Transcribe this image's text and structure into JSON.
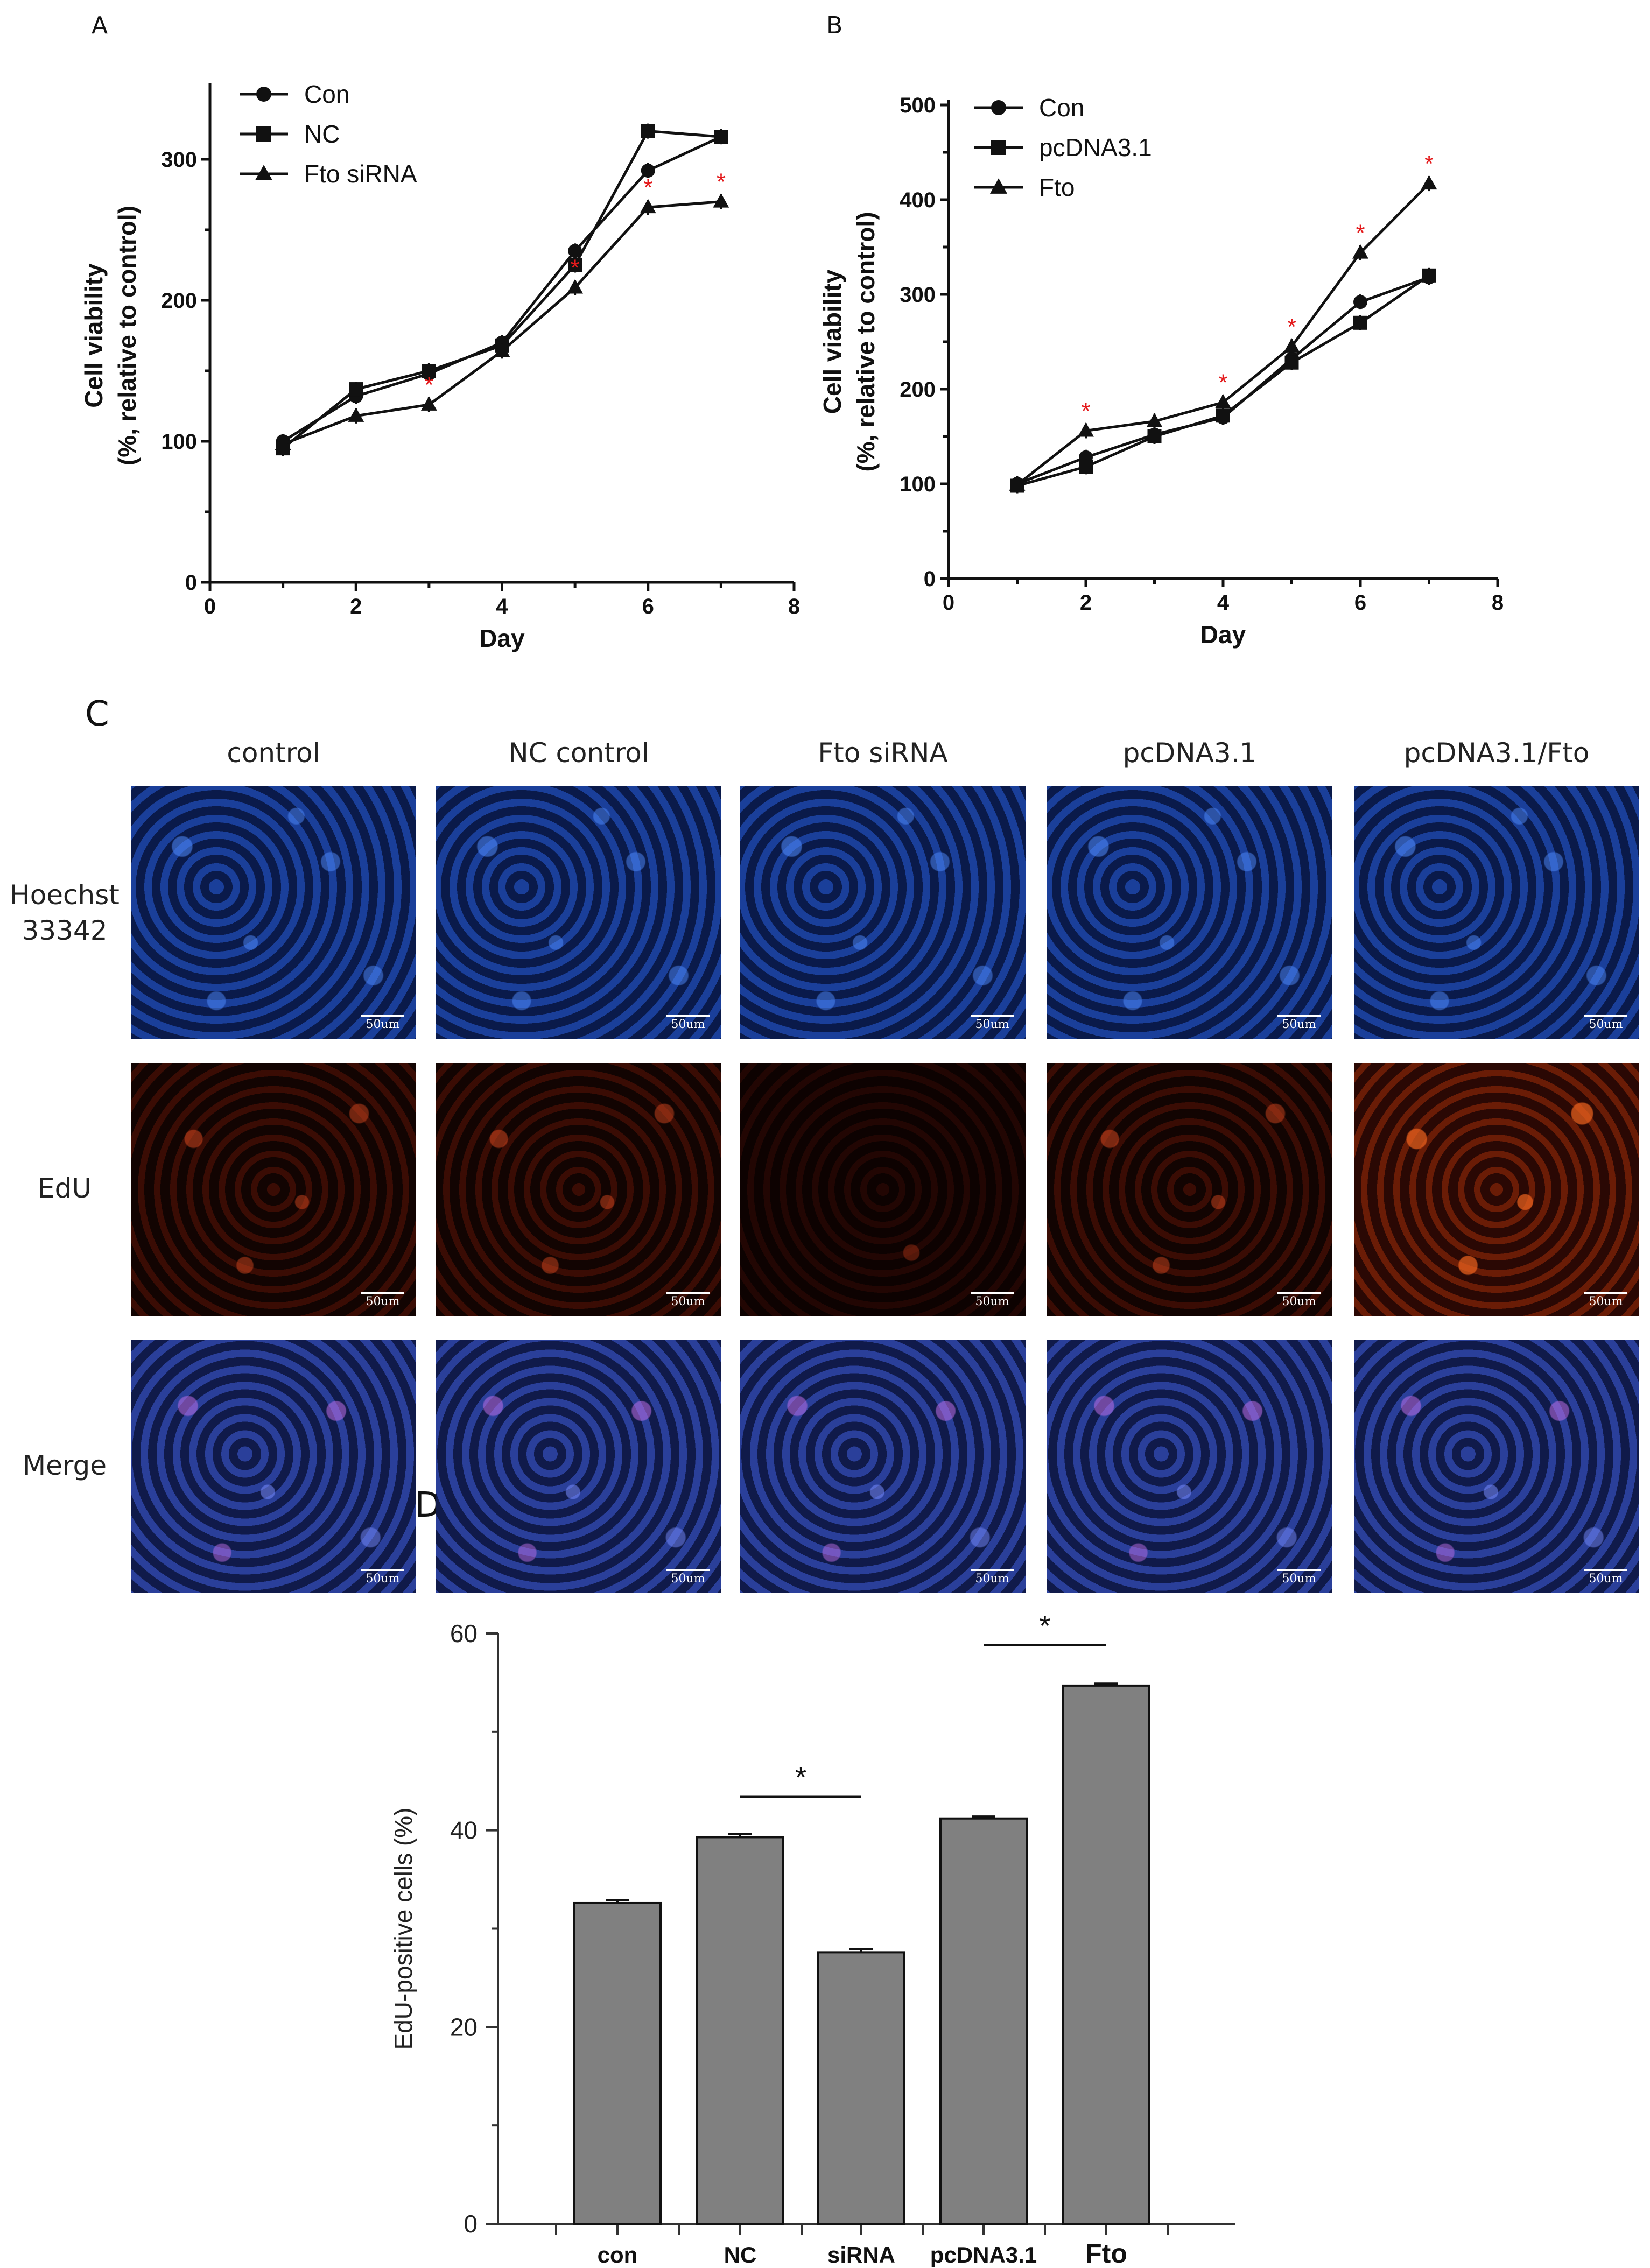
{
  "panels": {
    "A": "A",
    "B": "B",
    "C": "C",
    "D": "D"
  },
  "chart_data": [
    {
      "id": "A",
      "type": "line",
      "xlabel": "Day",
      "ylabel_line1": "Cell viability",
      "ylabel_line2": "(%, relative to control)",
      "xlim": [
        0,
        8
      ],
      "ylim": [
        0,
        350
      ],
      "xticks": [
        "0",
        "2",
        "4",
        "6",
        "8"
      ],
      "xtick_values": [
        0,
        2,
        4,
        6,
        8
      ],
      "yticks": [
        "0",
        "100",
        "200",
        "300"
      ],
      "ytick_values": [
        0,
        100,
        200,
        300
      ],
      "legend": [
        "Con",
        "NC",
        "Fto siRNA"
      ],
      "series": [
        {
          "name": "Con",
          "marker": "circle",
          "x": [
            1,
            2,
            3,
            4,
            5,
            6,
            7
          ],
          "values": [
            100,
            132,
            148,
            170,
            235,
            292,
            316
          ]
        },
        {
          "name": "NC",
          "marker": "square",
          "x": [
            1,
            2,
            3,
            4,
            5,
            6,
            7
          ],
          "values": [
            95,
            137,
            150,
            168,
            225,
            320,
            316
          ]
        },
        {
          "name": "Fto siRNA",
          "marker": "triangle",
          "x": [
            1,
            2,
            3,
            4,
            5,
            6,
            7
          ],
          "values": [
            98,
            118,
            126,
            164,
            209,
            266,
            270
          ]
        }
      ],
      "significance": [
        {
          "x": 3,
          "y": 126,
          "label": "*"
        },
        {
          "x": 5,
          "y": 209,
          "label": "*"
        },
        {
          "x": 6,
          "y": 266,
          "label": "*"
        },
        {
          "x": 7,
          "y": 270,
          "label": "*"
        }
      ]
    },
    {
      "id": "B",
      "type": "line",
      "xlabel": "Day",
      "ylabel_line1": "Cell viability",
      "ylabel_line2": "(%, relative to control)",
      "xlim": [
        0,
        8
      ],
      "ylim": [
        0,
        500
      ],
      "xticks": [
        "0",
        "2",
        "4",
        "6",
        "8"
      ],
      "xtick_values": [
        0,
        2,
        4,
        6,
        8
      ],
      "yticks": [
        "0",
        "100",
        "200",
        "300",
        "400",
        "500"
      ],
      "ytick_values": [
        0,
        100,
        200,
        300,
        400,
        500
      ],
      "legend": [
        "Con",
        "pcDNA3.1",
        "Fto"
      ],
      "series": [
        {
          "name": "Con",
          "marker": "circle",
          "x": [
            1,
            2,
            3,
            4,
            5,
            6,
            7
          ],
          "values": [
            100,
            128,
            152,
            170,
            232,
            292,
            318
          ]
        },
        {
          "name": "pcDNA3.1",
          "marker": "square",
          "x": [
            1,
            2,
            3,
            4,
            5,
            6,
            7
          ],
          "values": [
            98,
            118,
            150,
            172,
            228,
            270,
            320
          ]
        },
        {
          "name": "Fto",
          "marker": "triangle",
          "x": [
            1,
            2,
            3,
            4,
            5,
            6,
            7
          ],
          "values": [
            99,
            156,
            166,
            186,
            245,
            344,
            417
          ]
        }
      ],
      "significance": [
        {
          "x": 2,
          "y": 156,
          "label": "*"
        },
        {
          "x": 4,
          "y": 186,
          "label": "*"
        },
        {
          "x": 5,
          "y": 245,
          "label": "*"
        },
        {
          "x": 6,
          "y": 344,
          "label": "*"
        },
        {
          "x": 7,
          "y": 417,
          "label": "*"
        }
      ]
    },
    {
      "id": "D",
      "type": "bar",
      "ylabel": "EdU-positive cells (%)",
      "xlabel": "",
      "ylim": [
        0,
        60
      ],
      "yticks": [
        "0",
        "20",
        "40",
        "60"
      ],
      "ytick_values": [
        0,
        20,
        40,
        60
      ],
      "categories": [
        "con",
        "NC",
        "siRNA",
        "pcDNA3.1",
        "Fto"
      ],
      "values": [
        32.6,
        39.3,
        27.6,
        41.2,
        54.7
      ],
      "errors": [
        0.3,
        0.3,
        0.3,
        0.2,
        0.2
      ],
      "bar_color": "#808080",
      "comparisons": [
        {
          "from": "NC",
          "to": "siRNA",
          "label": "*"
        },
        {
          "from": "pcDNA3.1",
          "to": "Fto",
          "label": "*"
        }
      ]
    }
  ],
  "micrograph_grid": {
    "columns": [
      "control",
      "NC control",
      "Fto siRNA",
      "pcDNA3.1",
      "pcDNA3.1/Fto"
    ],
    "rows": [
      {
        "label_line1": "Hoechst",
        "label_line2": "33342",
        "kind": "hoechst"
      },
      {
        "label_line1": "EdU",
        "label_line2": "",
        "kind": "edu"
      },
      {
        "label_line1": "Merge",
        "label_line2": "",
        "kind": "merge"
      }
    ],
    "scale_bar": "50um"
  },
  "colors": {
    "significance_star": "#e41a1c",
    "axis": "#111111",
    "bar_fill": "#808080"
  }
}
